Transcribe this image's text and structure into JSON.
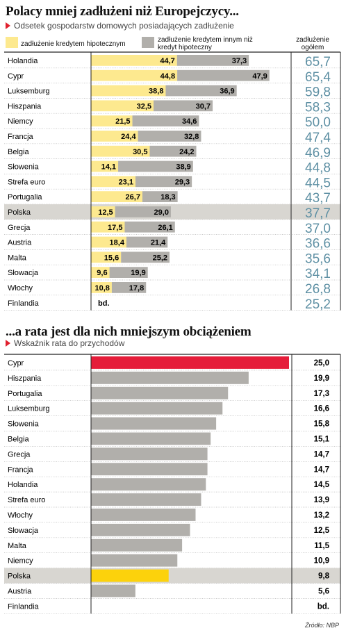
{
  "chart_data": [
    {
      "type": "bar",
      "title": "Polacy mniej zadłużeni niż Europejczycy...",
      "subtitle": "Odsetek gospodarstw domowych posiadających zadłużenie",
      "legend": [
        {
          "name": "zadłużenie kredytem hipotecznym",
          "color": "#fde98f"
        },
        {
          "name": "zadłużenie kredytem innym niż kredyt hipoteczny",
          "color": "#b1afab"
        },
        {
          "name": "zadłużenie ogółem"
        }
      ],
      "highlight": "Polska",
      "missing_label": "bd.",
      "categories": [
        "Holandia",
        "Cypr",
        "Luksemburg",
        "Hiszpania",
        "Niemcy",
        "Francja",
        "Belgia",
        "Słowenia",
        "Strefa euro",
        "Portugalia",
        "Polska",
        "Grecja",
        "Austria",
        "Malta",
        "Słowacja",
        "Włochy",
        "Finlandia"
      ],
      "series": [
        {
          "name": "zadłużenie kredytem hipotecznym",
          "values": [
            "44,7",
            "44,8",
            "38,8",
            "32,5",
            "21,5",
            "24,4",
            "30,5",
            "14,1",
            "23,1",
            "26,7",
            "12,5",
            "17,5",
            "18,4",
            "15,6",
            "9,6",
            "10,8",
            null
          ]
        },
        {
          "name": "zadłużenie kredytem innym niż kredyt hipoteczny",
          "values": [
            "37,3",
            "47,9",
            "36,9",
            "30,7",
            "34,6",
            "32,8",
            "24,2",
            "38,9",
            "29,3",
            "18,3",
            "29,0",
            "26,1",
            "21,4",
            "25,2",
            "19,9",
            "17,8",
            null
          ]
        },
        {
          "name": "zadłużenie ogółem",
          "values": [
            "65,7",
            "65,4",
            "59,8",
            "58,3",
            "50,0",
            "47,4",
            "46,9",
            "44,8",
            "44,5",
            "43,7",
            "37,7",
            "37,0",
            "36,6",
            "35,6",
            "34,1",
            "26,8",
            "25,2"
          ]
        }
      ]
    },
    {
      "type": "bar",
      "title": "...a rata jest dla nich mniejszym obciążeniem",
      "subtitle": "Wskaźnik rata do przychodów",
      "highlight": "Polska",
      "missing_label": "bd.",
      "categories": [
        "Cypr",
        "Hiszpania",
        "Portugalia",
        "Luksemburg",
        "Słowenia",
        "Belgia",
        "Grecja",
        "Francja",
        "Holandia",
        "Strefa euro",
        "Włochy",
        "Słowacja",
        "Malta",
        "Niemcy",
        "Polska",
        "Austria",
        "Finlandia"
      ],
      "values": [
        "25,0",
        "19,9",
        "17,3",
        "16,6",
        "15,8",
        "15,1",
        "14,7",
        "14,7",
        "14,5",
        "13,9",
        "13,2",
        "12,5",
        "11,5",
        "10,9",
        "9,8",
        "5,6",
        null
      ],
      "colors": {
        "first": "#e51d3a",
        "highlight": "#fcd20c",
        "default": "#b1afab",
        "highlight_row": "#d8d6d1"
      }
    }
  ],
  "source": "Źródło: NBP"
}
